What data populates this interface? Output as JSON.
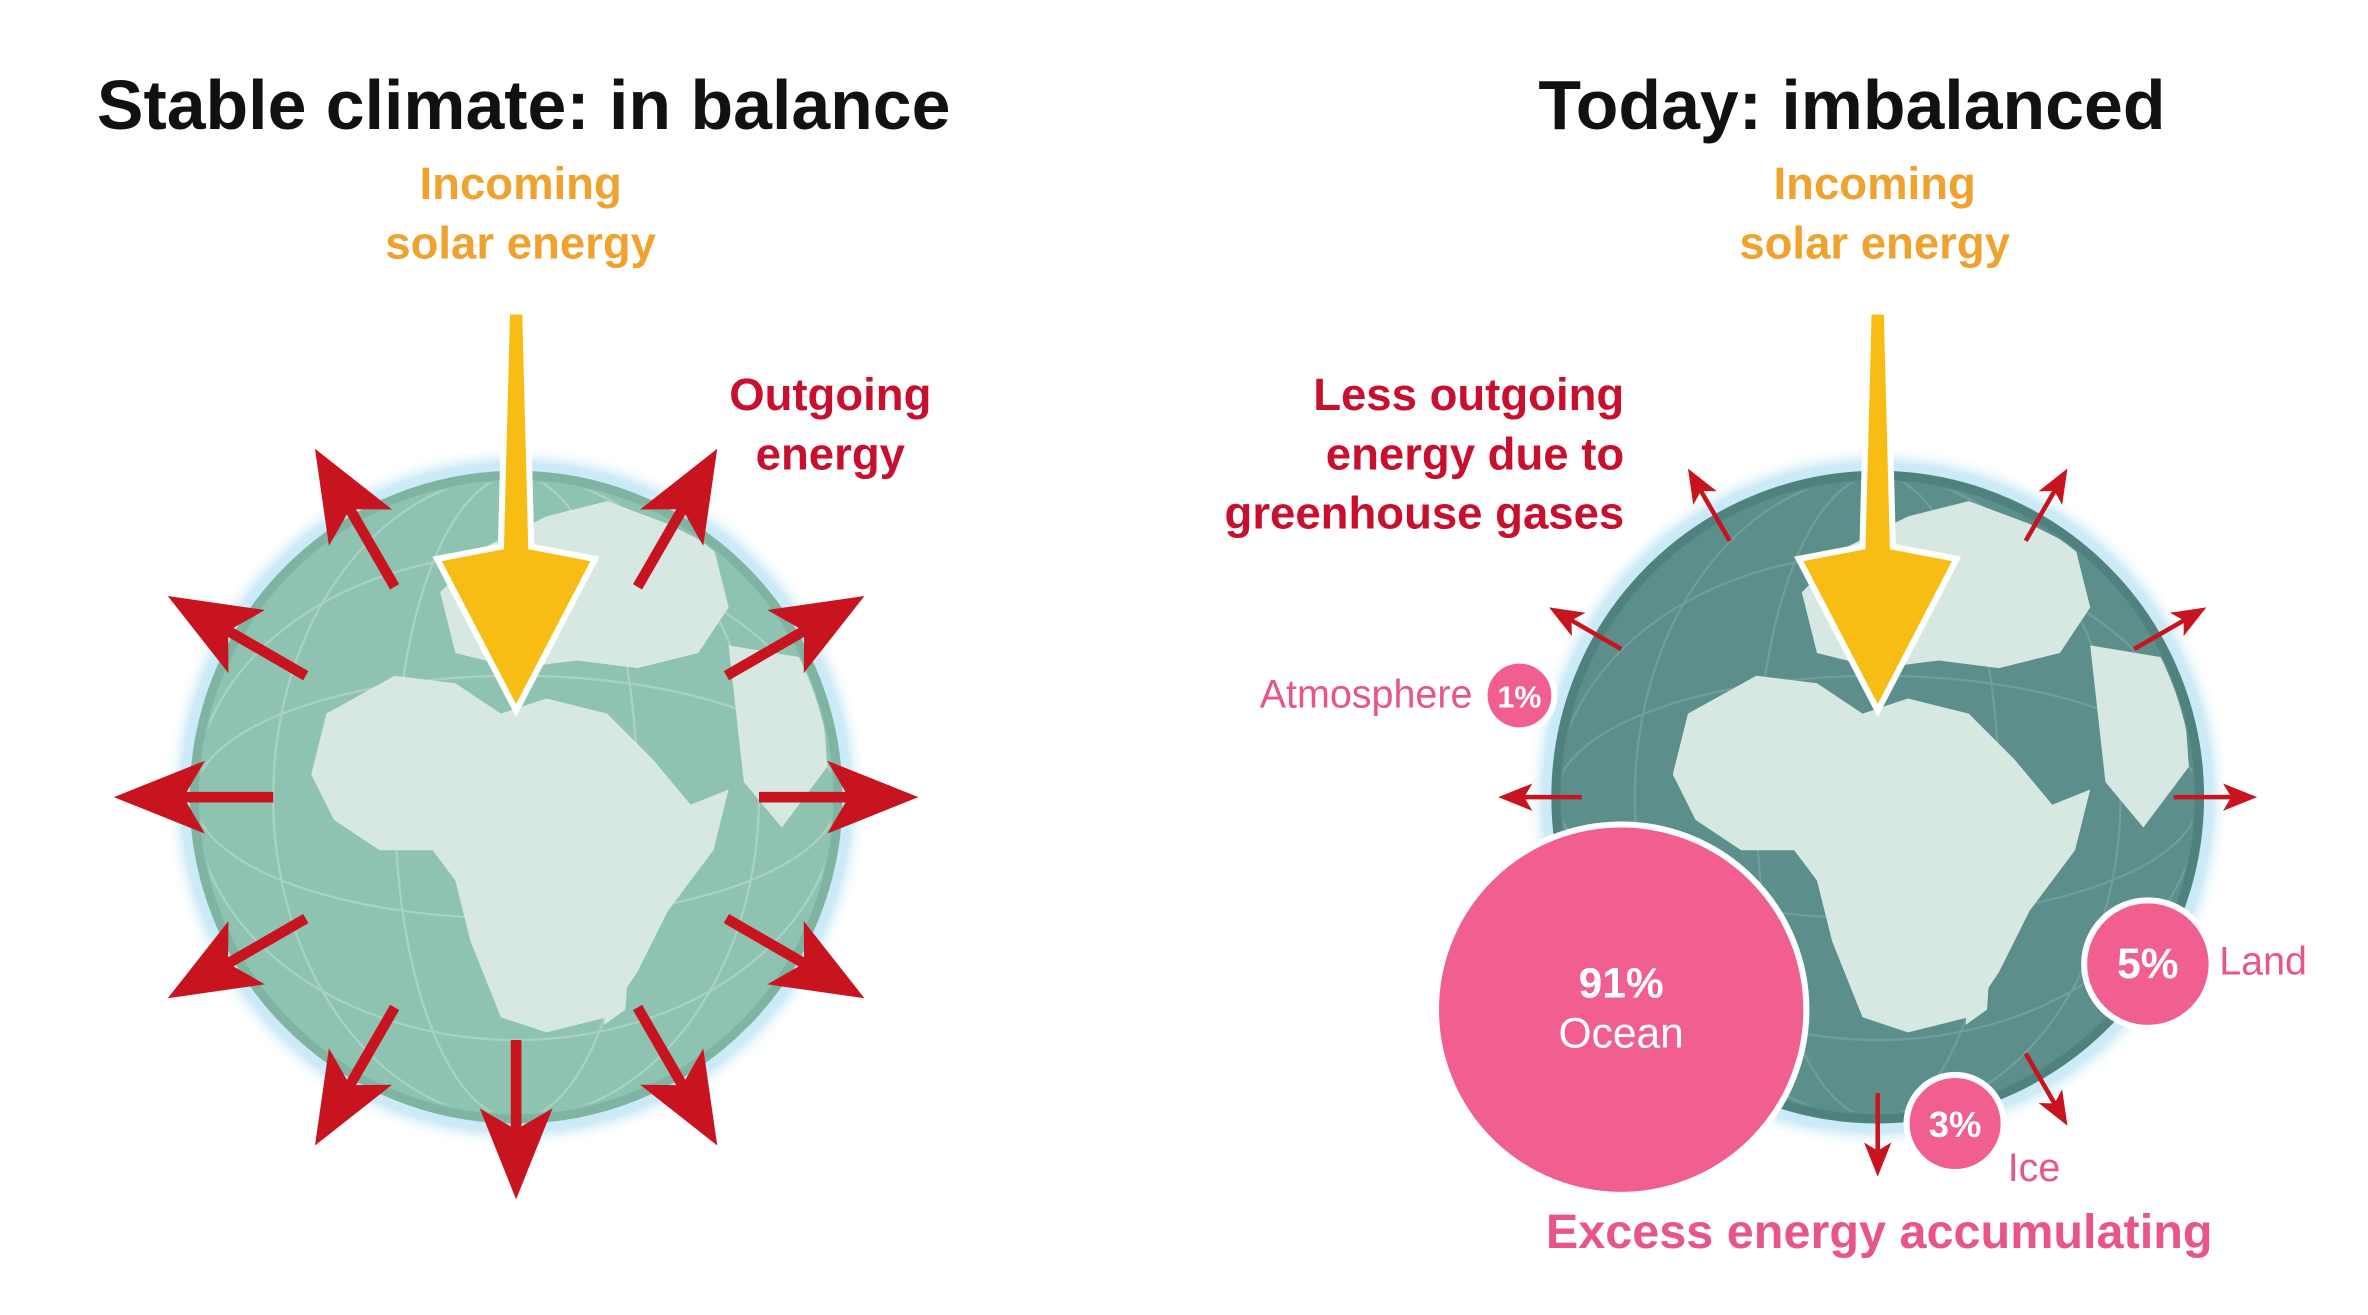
{
  "left": {
    "title": "Stable climate: in balance",
    "incoming": [
      "Incoming",
      "solar energy"
    ],
    "outgoing": [
      "Outgoing",
      "energy"
    ]
  },
  "right": {
    "title": "Today: imbalanced",
    "incoming": [
      "Incoming",
      "solar energy"
    ],
    "outgoing": [
      "Less outgoing",
      "energy due to",
      "greenhouse gases"
    ],
    "bubbles": [
      {
        "value": "91%",
        "label": "Ocean"
      },
      {
        "value": "5%",
        "label": "Land"
      },
      {
        "value": "3%",
        "label": "Ice"
      },
      {
        "value": "1%",
        "label": "Atmosphere"
      }
    ],
    "footer": "Excess energy accumulating"
  }
}
